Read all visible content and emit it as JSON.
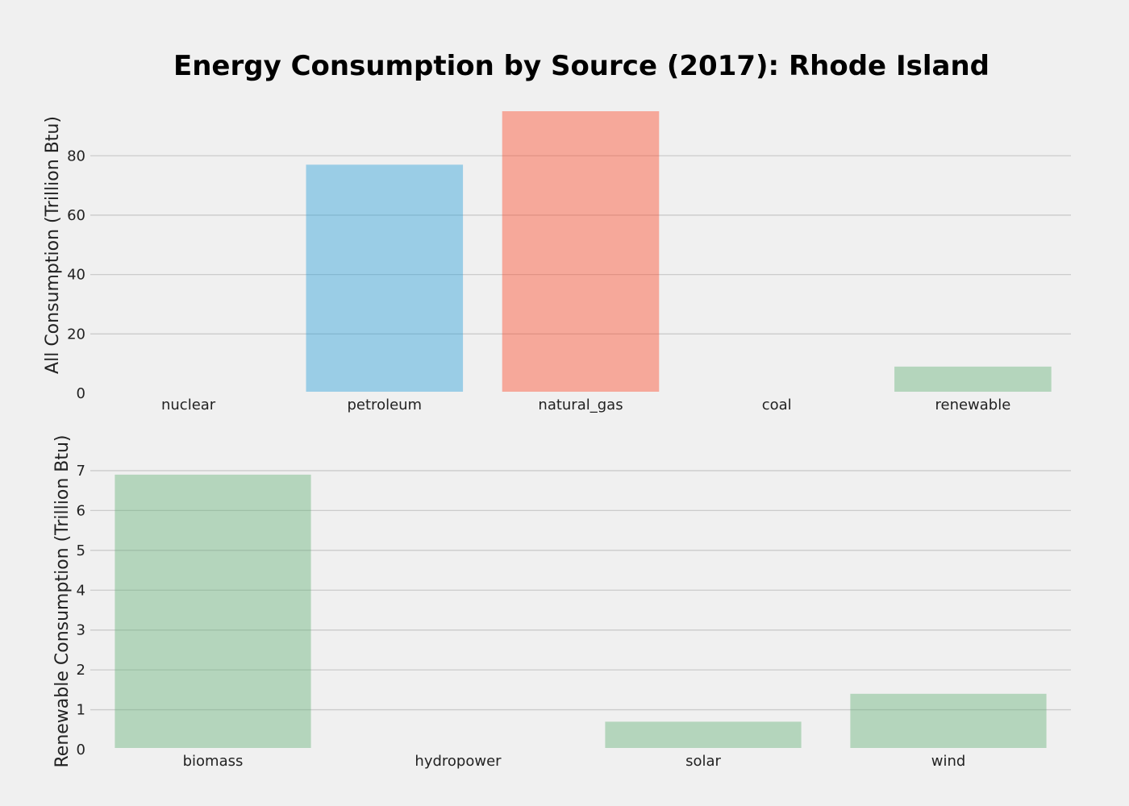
{
  "chart_data": [
    {
      "type": "bar",
      "title": "Energy Consumption by Source (2017): Rhode Island",
      "xlabel": "",
      "ylabel": "All Consumption (Trillion Btu)",
      "categories": [
        "nuclear",
        "petroleum",
        "natural_gas",
        "coal",
        "renewable"
      ],
      "values": [
        0,
        77,
        95,
        0,
        9
      ],
      "colors": [
        "#30a2da",
        "#30a2da",
        "#fc4f30",
        "#6d904f",
        "#6ab47c"
      ],
      "ylim": [
        0,
        95
      ],
      "yticks": [
        0,
        20,
        40,
        60,
        80
      ],
      "grid": true
    },
    {
      "type": "bar",
      "title": "",
      "xlabel": "",
      "ylabel": "Renewable Consumption (Trillion Btu)",
      "categories": [
        "biomass",
        "hydropower",
        "solar",
        "wind"
      ],
      "values": [
        6.9,
        0,
        0.7,
        1.4
      ],
      "colors": [
        "#6ab47c",
        "#6ab47c",
        "#6ab47c",
        "#6ab47c"
      ],
      "ylim": [
        0,
        7.1
      ],
      "yticks": [
        0,
        1,
        2,
        3,
        4,
        5,
        6,
        7
      ],
      "grid": true
    }
  ]
}
